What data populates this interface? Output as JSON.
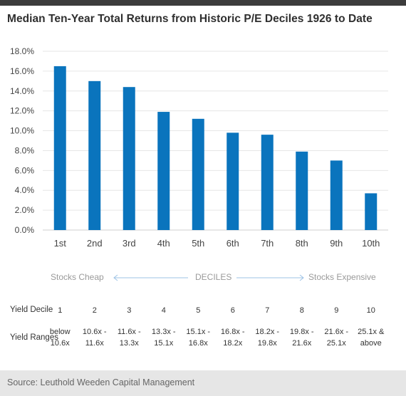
{
  "title": "Median Ten-Year Total Returns from Historic P/E Deciles 1926 to Date",
  "chart_data": {
    "type": "bar",
    "categories": [
      "1st",
      "2nd",
      "3rd",
      "4th",
      "5th",
      "6th",
      "7th",
      "8th",
      "9th",
      "10th"
    ],
    "values": [
      16.5,
      15.0,
      14.4,
      11.9,
      11.2,
      9.8,
      9.6,
      7.9,
      7.0,
      3.7
    ],
    "ylim": [
      0,
      18
    ],
    "yticks": [
      "0.0%",
      "2.0%",
      "4.0%",
      "6.0%",
      "8.0%",
      "10.0%",
      "12.0%",
      "14.0%",
      "16.0%",
      "18.0%"
    ],
    "ytick_values": [
      0,
      2,
      4,
      6,
      8,
      10,
      12,
      14,
      16,
      18
    ],
    "bar_color": "#0a74bd",
    "grid": true
  },
  "scale_note": {
    "left": "Stocks Cheap",
    "center": "DECILES",
    "right": "Stocks Expensive"
  },
  "table": {
    "yield_decile_label": "Yield Decile",
    "yield_ranges_label": "Yield Ranges",
    "deciles": [
      "1",
      "2",
      "3",
      "4",
      "5",
      "6",
      "7",
      "8",
      "9",
      "10"
    ],
    "ranges": [
      [
        "below",
        "10.6x"
      ],
      [
        "10.6x -",
        "11.6x"
      ],
      [
        "11.6x -",
        "13.3x"
      ],
      [
        "13.3x -",
        "15.1x"
      ],
      [
        "15.1x -",
        "16.8x"
      ],
      [
        "16.8x -",
        "18.2x"
      ],
      [
        "18.2x -",
        "19.8x"
      ],
      [
        "19.8x -",
        "21.6x"
      ],
      [
        "21.6x -",
        "25.1x"
      ],
      [
        "25.1x &",
        "above"
      ]
    ]
  },
  "source": "Source: Leuthold Weeden Capital Management"
}
